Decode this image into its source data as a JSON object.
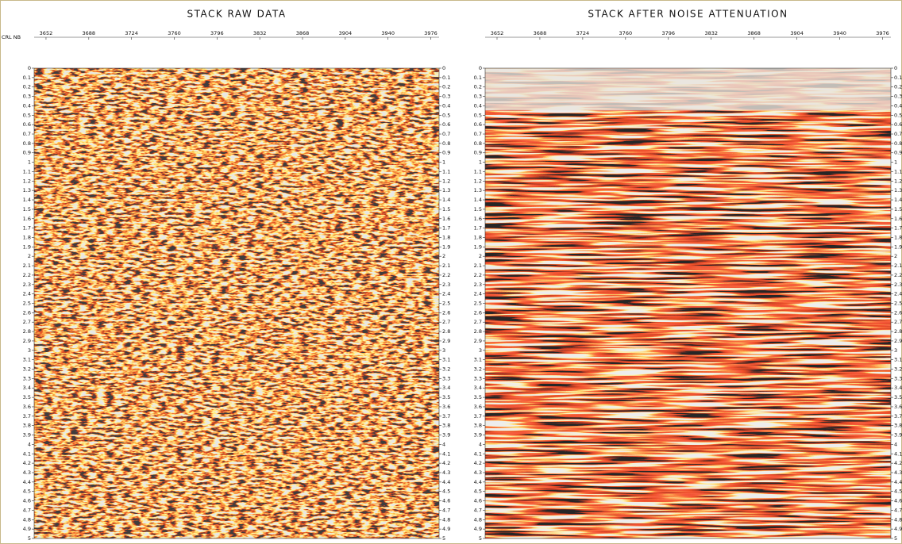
{
  "chart_data": [
    {
      "type": "seismic",
      "title": "STACK RAW DATA",
      "xlabel": "CRL NB",
      "xlim": [
        3642,
        3983
      ],
      "xticks": [
        3652,
        3688,
        3724,
        3760,
        3796,
        3832,
        3868,
        3904,
        3940,
        3976
      ],
      "ylim": [
        0,
        5
      ],
      "yticks": [
        0,
        0.1,
        0.2,
        0.3,
        0.4,
        0.5,
        0.6,
        0.7,
        0.8,
        0.9,
        1,
        1.1,
        1.2,
        1.3,
        1.4,
        1.5,
        1.6,
        1.7,
        1.8,
        1.9,
        2,
        2.1,
        2.2,
        2.3,
        2.4,
        2.5,
        2.6,
        2.7,
        2.8,
        2.9,
        3,
        3.1,
        3.2,
        3.3,
        3.4,
        3.5,
        3.6,
        3.7,
        3.8,
        3.9,
        4,
        4.1,
        4.2,
        4.3,
        4.4,
        4.5,
        4.6,
        4.7,
        4.8,
        4.9,
        5
      ]
    },
    {
      "type": "seismic",
      "title": "STACK AFTER NOISE ATTENUATION",
      "xlim": [
        3642,
        3983
      ],
      "xticks": [
        3652,
        3688,
        3724,
        3760,
        3796,
        3832,
        3868,
        3904,
        3940,
        3976
      ],
      "ylim": [
        0,
        5
      ],
      "yticks": [
        0,
        0.1,
        0.2,
        0.3,
        0.4,
        0.5,
        0.6,
        0.7,
        0.8,
        0.9,
        1,
        1.1,
        1.2,
        1.3,
        1.4,
        1.5,
        1.6,
        1.7,
        1.8,
        1.9,
        2,
        2.1,
        2.2,
        2.3,
        2.4,
        2.5,
        2.6,
        2.7,
        2.8,
        2.9,
        3,
        3.1,
        3.2,
        3.3,
        3.4,
        3.5,
        3.6,
        3.7,
        3.8,
        3.9,
        4,
        4.1,
        4.2,
        4.3,
        4.4,
        4.5,
        4.6,
        4.7,
        4.8,
        4.9,
        5
      ]
    }
  ]
}
